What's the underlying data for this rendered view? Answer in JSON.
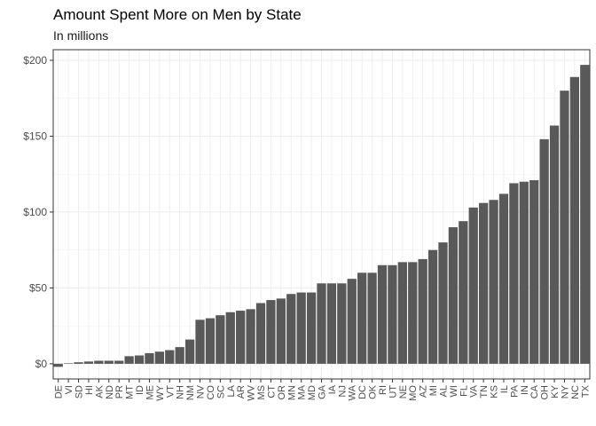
{
  "chart_data": {
    "type": "bar",
    "title": "Amount Spent More on Men by State",
    "subtitle": "In millions",
    "xlabel": "",
    "ylabel": "",
    "ylim": [
      -10,
      207
    ],
    "yticks": [
      0,
      50,
      100,
      150,
      200
    ],
    "ytick_labels": [
      "$0",
      "$50",
      "$100",
      "$150",
      "$200"
    ],
    "grid": true,
    "bar_color": "#595959",
    "categories": [
      "DE",
      "VI",
      "SD",
      "HI",
      "AK",
      "ND",
      "PR",
      "MT",
      "ID",
      "ME",
      "WY",
      "VT",
      "NH",
      "NM",
      "NV",
      "CO",
      "SC",
      "LA",
      "AR",
      "WV",
      "MS",
      "CT",
      "OR",
      "MN",
      "MA",
      "MD",
      "GA",
      "IA",
      "NJ",
      "WA",
      "DC",
      "OK",
      "RI",
      "UT",
      "NE",
      "MO",
      "AZ",
      "MI",
      "AL",
      "WI",
      "FL",
      "VA",
      "TN",
      "KS",
      "IL",
      "PA",
      "IN",
      "CA",
      "OH",
      "KY",
      "NY",
      "NC",
      "TX"
    ],
    "values": [
      -2,
      0.3,
      1,
      1.5,
      2,
      2,
      2,
      5,
      5.5,
      7,
      8,
      9,
      11,
      16,
      29,
      30,
      32,
      34,
      35,
      36,
      40,
      42,
      43,
      46,
      47,
      47,
      53,
      53,
      53,
      56,
      60,
      60,
      65,
      65,
      67,
      67,
      69,
      75,
      80,
      90,
      94,
      103,
      106,
      108,
      112,
      119,
      120,
      121,
      148,
      157,
      180,
      189,
      197
    ]
  }
}
